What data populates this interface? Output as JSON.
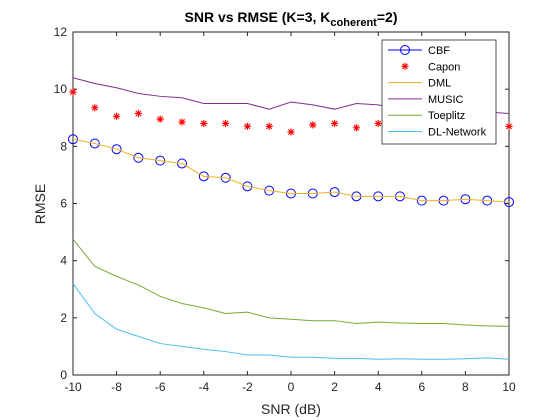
{
  "chart_data": {
    "type": "line",
    "title_main": "SNR vs RMSE (K=3, K",
    "title_sub": "coherent",
    "title_end": "=2)",
    "xlabel": "SNR (dB)",
    "ylabel": "RMSE",
    "xlim": [
      -10,
      10
    ],
    "ylim": [
      0,
      12
    ],
    "xticks": [
      -10,
      -8,
      -6,
      -4,
      -2,
      0,
      2,
      4,
      6,
      8,
      10
    ],
    "yticks": [
      0,
      2,
      4,
      6,
      8,
      10,
      12
    ],
    "grid": false,
    "legend_position": "top-right",
    "x": [
      -10,
      -9,
      -8,
      -7,
      -6,
      -5,
      -4,
      -3,
      -2,
      -1,
      0,
      1,
      2,
      3,
      4,
      5,
      6,
      7,
      8,
      9,
      10
    ],
    "series": [
      {
        "name": "CBF",
        "color": "#0000ff",
        "line_color": "#0000ff",
        "marker": "circle",
        "line": false,
        "values": [
          8.25,
          8.1,
          7.9,
          7.6,
          7.5,
          7.4,
          6.95,
          6.9,
          6.6,
          6.45,
          6.35,
          6.35,
          6.4,
          6.25,
          6.25,
          6.25,
          6.1,
          6.1,
          6.15,
          6.1,
          6.05
        ]
      },
      {
        "name": "Capon",
        "color": "#ff0000",
        "marker": "star",
        "line": false,
        "values": [
          9.9,
          9.35,
          9.05,
          9.15,
          8.95,
          8.85,
          8.8,
          8.8,
          8.7,
          8.7,
          8.5,
          8.75,
          8.8,
          8.65,
          8.8,
          8.8,
          8.75,
          8.75,
          8.8,
          8.75,
          8.7
        ]
      },
      {
        "name": "DML",
        "color": "#edb120",
        "marker": "none",
        "line": true,
        "values": [
          8.25,
          8.1,
          7.9,
          7.6,
          7.5,
          7.4,
          6.95,
          6.9,
          6.6,
          6.45,
          6.35,
          6.35,
          6.4,
          6.25,
          6.25,
          6.25,
          6.1,
          6.1,
          6.15,
          6.1,
          6.05
        ]
      },
      {
        "name": "MUSIC",
        "color": "#7e2f8e",
        "marker": "none",
        "line": true,
        "values": [
          10.4,
          10.2,
          10.05,
          9.85,
          9.75,
          9.7,
          9.5,
          9.5,
          9.5,
          9.3,
          9.55,
          9.45,
          9.3,
          9.5,
          9.45,
          9.3,
          9.4,
          9.25,
          9.2,
          9.2,
          9.15
        ]
      },
      {
        "name": "Toeplitz",
        "color": "#77ac30",
        "marker": "none",
        "line": true,
        "values": [
          4.75,
          3.8,
          3.45,
          3.15,
          2.75,
          2.5,
          2.35,
          2.15,
          2.2,
          2.0,
          1.95,
          1.9,
          1.9,
          1.8,
          1.85,
          1.82,
          1.8,
          1.8,
          1.75,
          1.72,
          1.7
        ]
      },
      {
        "name": "DL-Network",
        "color": "#4dbeee",
        "marker": "none",
        "line": true,
        "values": [
          3.2,
          2.15,
          1.6,
          1.35,
          1.1,
          1.0,
          0.9,
          0.82,
          0.7,
          0.7,
          0.62,
          0.62,
          0.58,
          0.58,
          0.55,
          0.57,
          0.55,
          0.55,
          0.57,
          0.6,
          0.55
        ]
      }
    ]
  }
}
